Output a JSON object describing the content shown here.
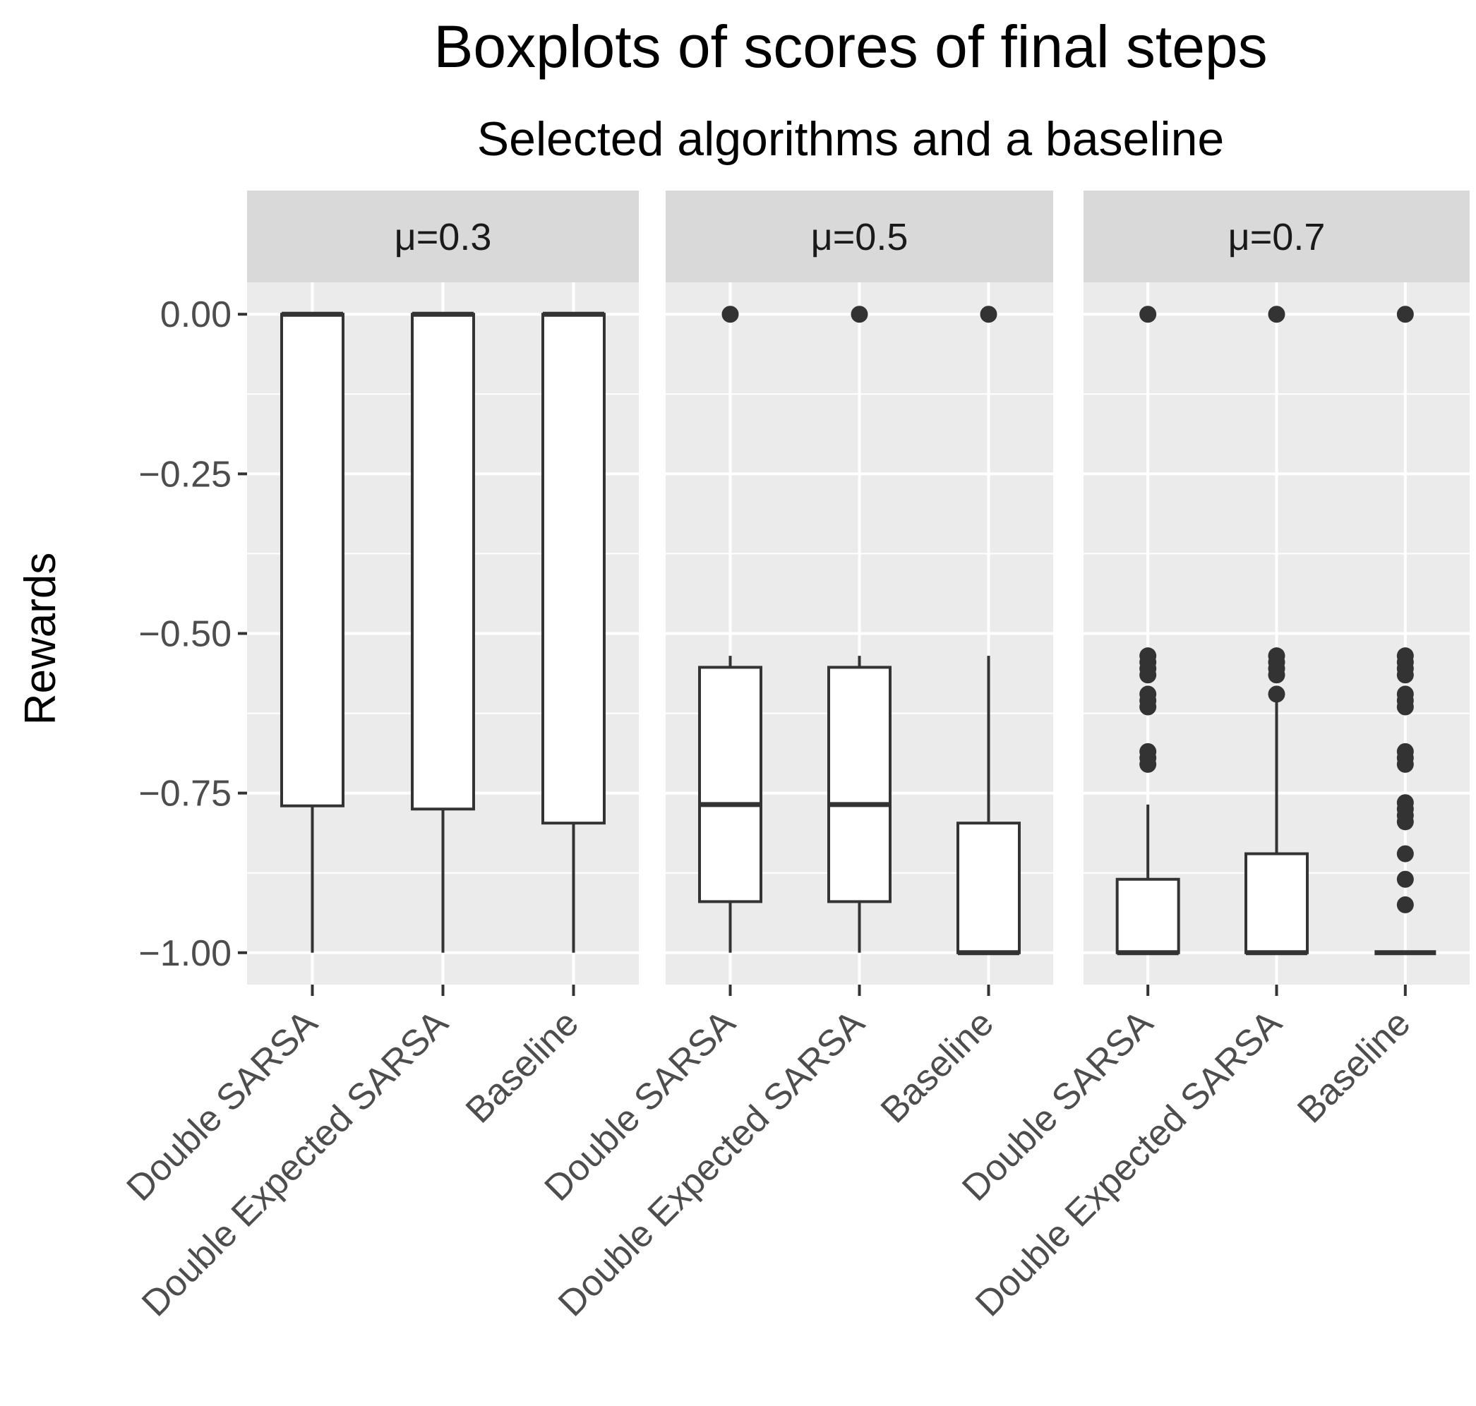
{
  "chart_data": {
    "type": "boxplot",
    "title": "Boxplots of scores of final steps",
    "subtitle": "Selected algorithms and a baseline",
    "ylabel": "Rewards",
    "xlabel": "",
    "ylim": [
      -1.05,
      0.05
    ],
    "yticks": [
      0.0,
      -0.25,
      -0.5,
      -0.75,
      -1.0
    ],
    "ytick_labels": [
      "0.00",
      "−0.25",
      "−0.50",
      "−0.75",
      "−1.00"
    ],
    "categories": [
      "Double SARSA",
      "Double Expected SARSA",
      "Baseline"
    ],
    "grid": true,
    "colors": {
      "panel_bg": "#ebebeb",
      "strip_bg": "#d9d9d9",
      "grid": "#ffffff",
      "box_fill": "#ffffff",
      "box_line": "#333333",
      "tick_text": "#4d4d4d"
    },
    "facets": [
      {
        "label": "μ=0.3",
        "boxes": [
          {
            "name": "Double SARSA",
            "lower_whisker": -1.0,
            "q1": -0.77,
            "median": 0.0,
            "q3": 0.0,
            "upper_whisker": 0.0,
            "outliers": []
          },
          {
            "name": "Double Expected SARSA",
            "lower_whisker": -1.0,
            "q1": -0.775,
            "median": 0.0,
            "q3": 0.0,
            "upper_whisker": 0.0,
            "outliers": []
          },
          {
            "name": "Baseline",
            "lower_whisker": -1.0,
            "q1": -0.797,
            "median": 0.0,
            "q3": 0.0,
            "upper_whisker": 0.0,
            "outliers": []
          }
        ]
      },
      {
        "label": "μ=0.5",
        "boxes": [
          {
            "name": "Double SARSA",
            "lower_whisker": -1.0,
            "q1": -0.92,
            "median": -0.768,
            "q3": -0.553,
            "upper_whisker": -0.535,
            "outliers": [
              0.0
            ]
          },
          {
            "name": "Double Expected SARSA",
            "lower_whisker": -1.0,
            "q1": -0.92,
            "median": -0.768,
            "q3": -0.553,
            "upper_whisker": -0.535,
            "outliers": [
              0.0
            ]
          },
          {
            "name": "Baseline",
            "lower_whisker": -1.0,
            "q1": -1.0,
            "median": -1.0,
            "q3": -0.797,
            "upper_whisker": -0.535,
            "outliers": [
              0.0
            ]
          }
        ]
      },
      {
        "label": "μ=0.7",
        "boxes": [
          {
            "name": "Double SARSA",
            "lower_whisker": -1.0,
            "q1": -1.0,
            "median": -1.0,
            "q3": -0.885,
            "upper_whisker": -0.768,
            "outliers": [
              0.0,
              -0.535,
              -0.545,
              -0.555,
              -0.565,
              -0.595,
              -0.605,
              -0.615,
              -0.685,
              -0.695,
              -0.705
            ]
          },
          {
            "name": "Double Expected SARSA",
            "lower_whisker": -1.0,
            "q1": -1.0,
            "median": -1.0,
            "q3": -0.845,
            "upper_whisker": -0.605,
            "outliers": [
              0.0,
              -0.535,
              -0.545,
              -0.555,
              -0.565,
              -0.595
            ]
          },
          {
            "name": "Baseline",
            "lower_whisker": -1.0,
            "q1": -1.0,
            "median": -1.0,
            "q3": -1.0,
            "upper_whisker": -1.0,
            "outliers": [
              0.0,
              -0.535,
              -0.545,
              -0.555,
              -0.565,
              -0.595,
              -0.605,
              -0.615,
              -0.685,
              -0.695,
              -0.705,
              -0.765,
              -0.775,
              -0.785,
              -0.795,
              -0.845,
              -0.885,
              -0.925
            ]
          }
        ]
      }
    ]
  }
}
